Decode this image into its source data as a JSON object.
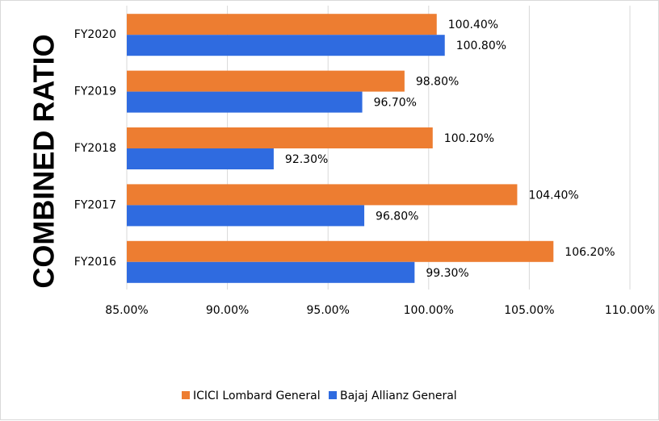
{
  "chart_data": {
    "type": "bar",
    "orientation": "horizontal",
    "categories": [
      "FY2020",
      "FY2019",
      "FY2018",
      "FY2017",
      "FY2016"
    ],
    "series": [
      {
        "name": "ICICI Lombard General",
        "color": "#ED7D31",
        "values": [
          100.4,
          98.8,
          100.2,
          104.4,
          106.2
        ],
        "labels": [
          "100.40%",
          "98.80%",
          "100.20%",
          "104.40%",
          "106.20%"
        ]
      },
      {
        "name": "Bajaj Allianz General",
        "color": "#2F6BE0",
        "values": [
          100.8,
          96.7,
          92.3,
          96.8,
          99.3
        ],
        "labels": [
          "100.80%",
          "96.70%",
          "92.30%",
          "96.80%",
          "99.30%"
        ]
      }
    ],
    "xlim": [
      85,
      110
    ],
    "xticks": [
      85,
      90,
      95,
      100,
      105,
      110
    ],
    "xtick_labels": [
      "85.00%",
      "90.00%",
      "95.00%",
      "100.00%",
      "105.00%",
      "110.00%"
    ],
    "ylabel": "COMBINED RATIO",
    "xlabel": "",
    "grid": true,
    "legend": "bottom"
  }
}
